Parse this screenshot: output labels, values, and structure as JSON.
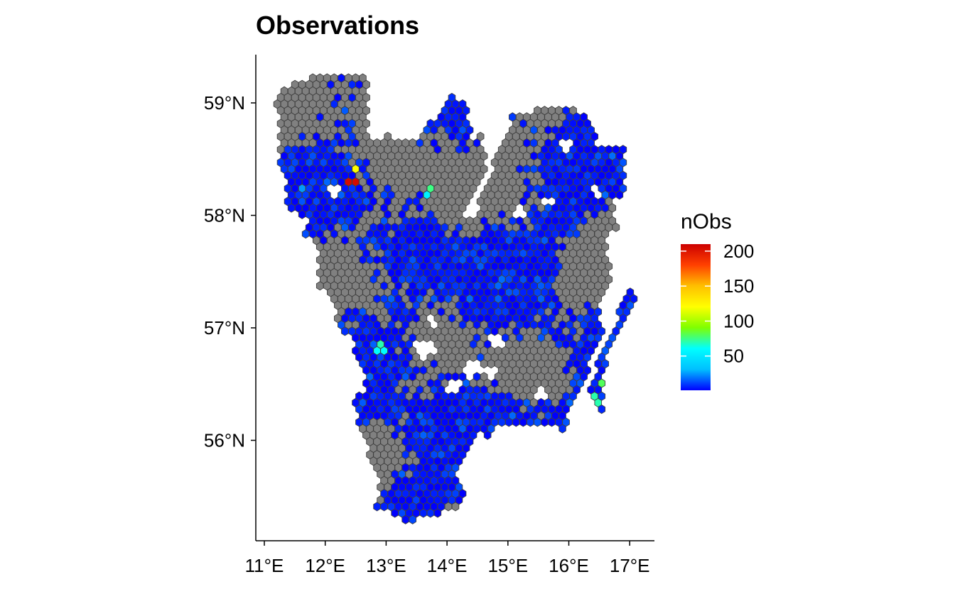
{
  "title": "Observations",
  "map": {
    "type": "hexbin-map",
    "x_ticks": [
      "11°E",
      "12°E",
      "13°E",
      "14°E",
      "15°E",
      "16°E",
      "17°E"
    ],
    "x_tick_values": [
      11,
      12,
      13,
      14,
      15,
      16,
      17
    ],
    "y_ticks": [
      "56°N",
      "57°N",
      "58°N",
      "59°N"
    ],
    "y_tick_values": [
      56,
      57,
      58,
      59
    ],
    "x_range": [
      10.85,
      17.4
    ],
    "y_range": [
      55.1,
      59.45
    ],
    "colors": {
      "no_data": "#808080",
      "hex_border": "#404040",
      "axis": "#000000"
    }
  },
  "legend": {
    "title": "nObs",
    "labels": [
      "200",
      "150",
      "100",
      "50"
    ],
    "values": [
      200,
      150,
      100,
      50
    ],
    "min": 1,
    "max": 210,
    "gradient": [
      "#0000ff",
      "#00bfff",
      "#00ffff",
      "#7fff00",
      "#ffff00",
      "#ffbf00",
      "#ff4000",
      "#cc0000"
    ]
  },
  "highlights": [
    {
      "lon": 12.45,
      "lat": 58.32,
      "value": 205
    },
    {
      "lon": 12.48,
      "lat": 58.41,
      "value": 120
    },
    {
      "lon": 12.52,
      "lat": 58.32,
      "value": 150
    },
    {
      "lon": 13.72,
      "lat": 58.24,
      "value": 75
    },
    {
      "lon": 13.68,
      "lat": 58.17,
      "value": 55
    },
    {
      "lon": 12.95,
      "lat": 56.84,
      "value": 70
    },
    {
      "lon": 12.9,
      "lat": 56.78,
      "value": 60
    },
    {
      "lon": 16.55,
      "lat": 56.52,
      "value": 80
    },
    {
      "lon": 16.45,
      "lat": 56.36,
      "value": 70
    },
    {
      "lon": 11.65,
      "lat": 58.22,
      "value": 25
    }
  ]
}
